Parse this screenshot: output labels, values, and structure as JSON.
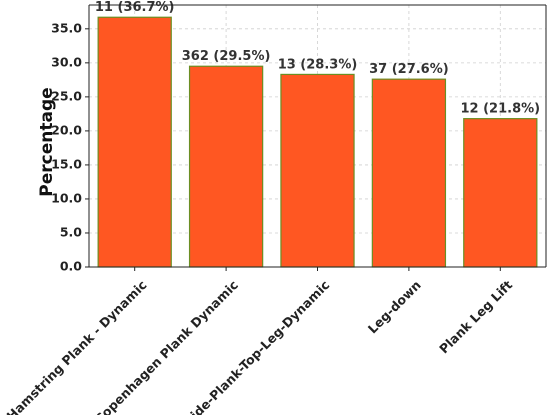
{
  "chart_data": {
    "type": "bar",
    "title": "",
    "xlabel": "",
    "ylabel": "Percentage",
    "categories": [
      "Hamstring Plank - Dynamic",
      "Copenhagen Plank Dynamic",
      "Side-Plank-Top-Leg-Dynamic",
      "Leg-down",
      "Plank Leg Lift"
    ],
    "values": [
      36.7,
      29.5,
      28.3,
      27.6,
      21.8
    ],
    "data_labels": [
      "11 (36.7%)",
      "362 (29.5%)",
      "13 (28.3%)",
      "37 (27.6%)",
      "12 (21.8%)"
    ],
    "ylim": [
      0,
      38.5
    ],
    "yticks": [
      0,
      5,
      10,
      15,
      20,
      25,
      30,
      35
    ],
    "ytick_labels": [
      "0.0",
      "5.0",
      "10.0",
      "15.0",
      "20.0",
      "25.0",
      "30.0",
      "35.0"
    ],
    "grid": true,
    "bar_color": "#ff5722",
    "bar_edge_color": "#6b8e23"
  }
}
